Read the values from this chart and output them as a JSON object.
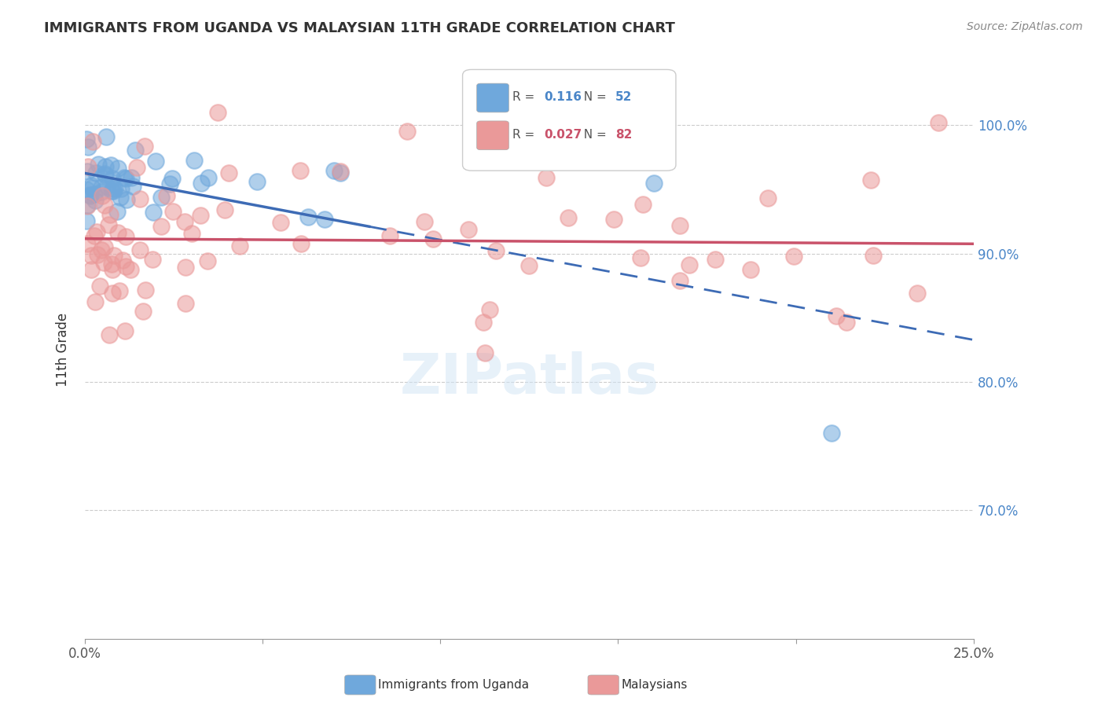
{
  "title": "IMMIGRANTS FROM UGANDA VS MALAYSIAN 11TH GRADE CORRELATION CHART",
  "source": "Source: ZipAtlas.com",
  "ylabel": "11th Grade",
  "legend_blue_r": "0.116",
  "legend_blue_n": "52",
  "legend_pink_r": "0.027",
  "legend_pink_n": "82",
  "blue_color": "#6fa8dc",
  "pink_color": "#ea9999",
  "blue_line_color": "#3d6bb5",
  "pink_line_color": "#c9526a",
  "right_axis_color": "#4a86c8",
  "title_color": "#333333",
  "grid_color": "#cccccc",
  "xlim": [
    0.0,
    0.25
  ],
  "ylim": [
    0.6,
    1.05
  ],
  "yticks": [
    0.7,
    0.8,
    0.9,
    1.0
  ],
  "ytick_labels": [
    "70.0%",
    "80.0%",
    "90.0%",
    "100.0%"
  ],
  "xticks": [
    0.0,
    0.05,
    0.1,
    0.15,
    0.2,
    0.25
  ],
  "xtick_labels": [
    "0.0%",
    "",
    "",
    "",
    "",
    "25.0%"
  ]
}
